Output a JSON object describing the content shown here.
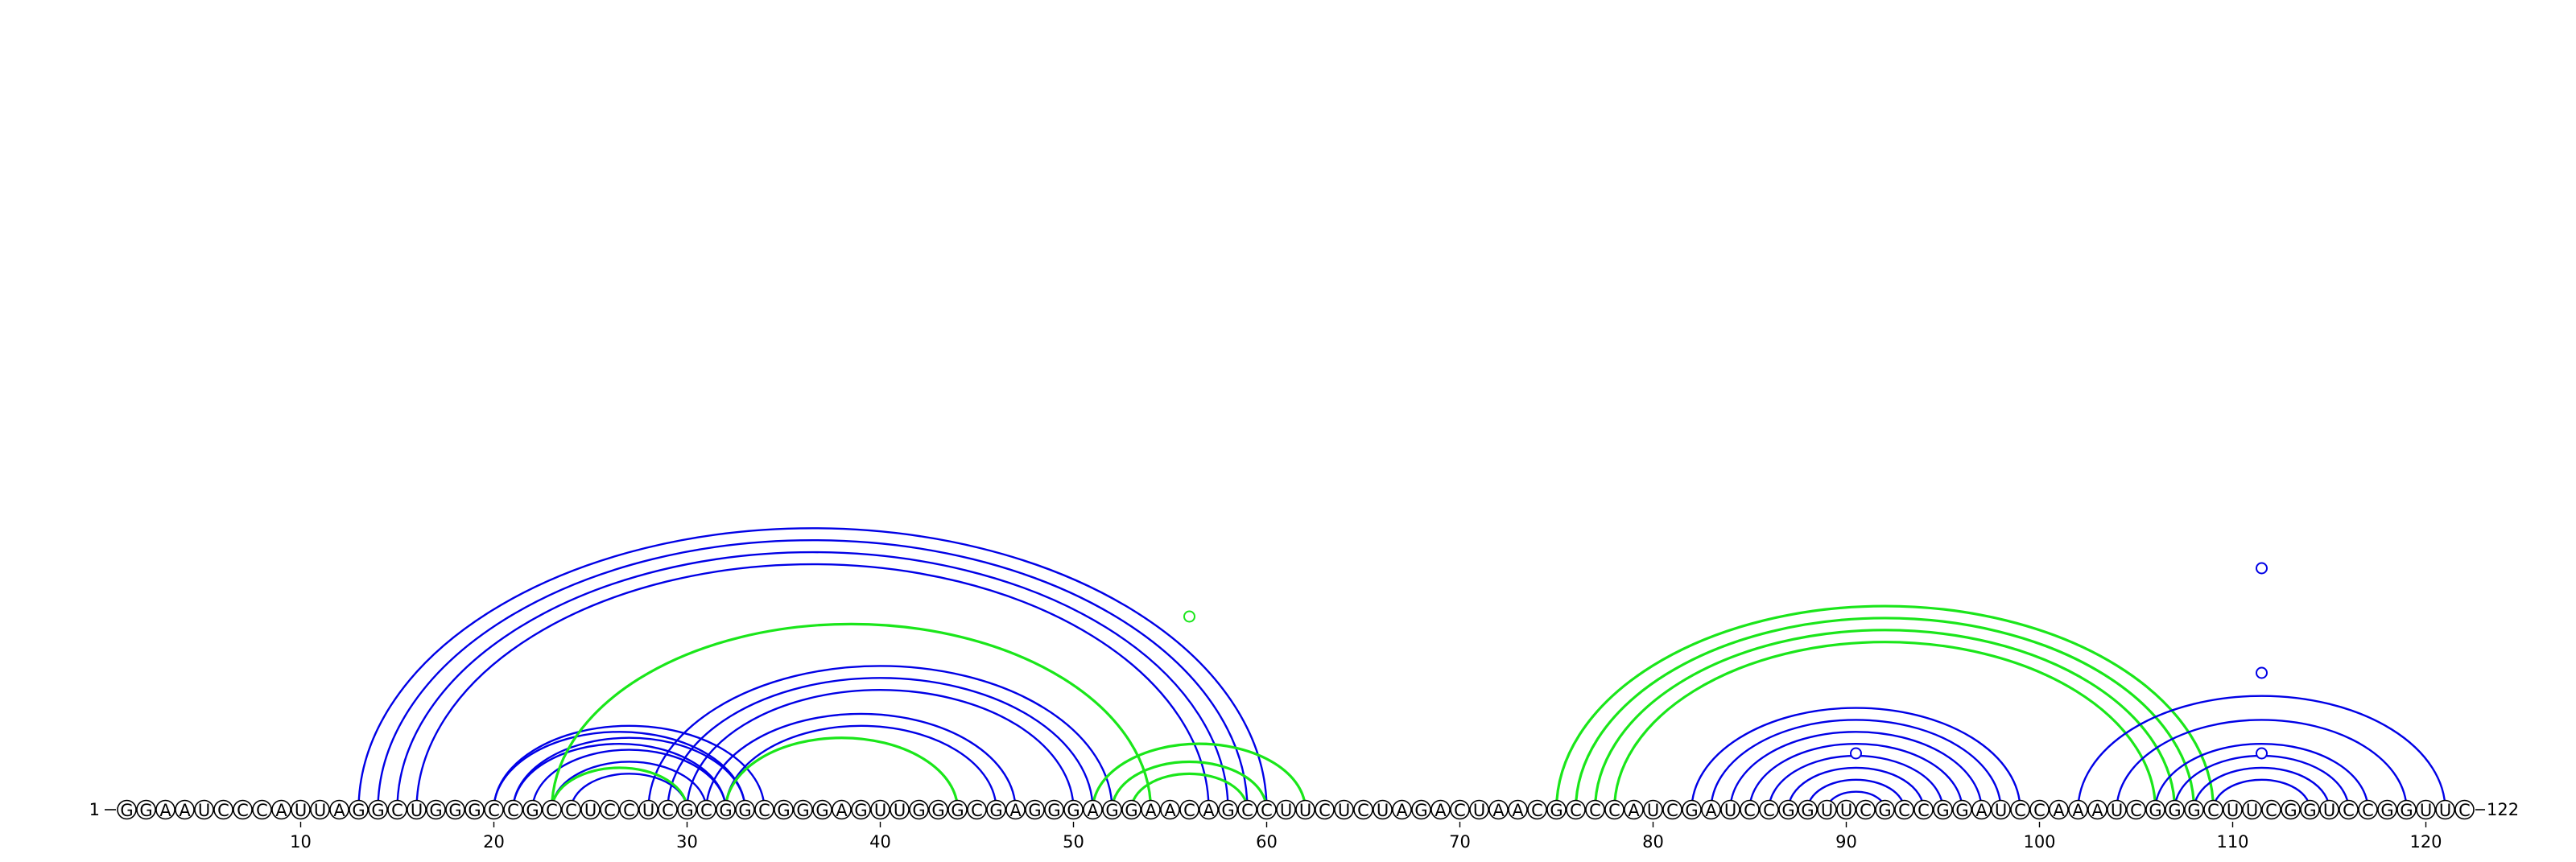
{
  "sequence": "GGAAUCCCAUUAGGCUGGGCCGCCUCCUCGCGGCGGGAGUUGGGCGAGGGAGGAACAGCCUUCUCUAGACUAACGCCCAUCGAUCCGGUUCGCCGGAUCCAAAUCGGGCUUCGGUCCGGUUC",
  "start_label": "1",
  "end_label": "122",
  "ticks": [
    10,
    20,
    30,
    40,
    50,
    60,
    70,
    80,
    90,
    100,
    110,
    120
  ],
  "colors": {
    "blue": "#0000e6",
    "green": "#1ae61a",
    "outline": "#000000"
  },
  "arcs": [
    {
      "i": 13,
      "j": 60,
      "c": "blue"
    },
    {
      "i": 14,
      "j": 59,
      "c": "blue"
    },
    {
      "i": 15,
      "j": 58,
      "c": "blue"
    },
    {
      "i": 16,
      "j": 57,
      "c": "blue"
    },
    {
      "i": 20,
      "j": 34,
      "c": "blue"
    },
    {
      "i": 21,
      "j": 33,
      "c": "blue"
    },
    {
      "i": 22,
      "j": 32,
      "c": "blue"
    },
    {
      "i": 23,
      "j": 31,
      "c": "blue"
    },
    {
      "i": 24,
      "j": 30,
      "c": "blue"
    },
    {
      "i": 20,
      "j": 33,
      "c": "blue"
    },
    {
      "i": 21,
      "j": 32,
      "c": "blue"
    },
    {
      "i": 28,
      "j": 52,
      "c": "blue"
    },
    {
      "i": 29,
      "j": 51,
      "c": "blue"
    },
    {
      "i": 30,
      "j": 50,
      "c": "blue"
    },
    {
      "i": 31,
      "j": 47,
      "c": "blue"
    },
    {
      "i": 32,
      "j": 46,
      "c": "blue"
    },
    {
      "i": 23,
      "j": 54,
      "c": "green"
    },
    {
      "i": 32,
      "j": 44,
      "c": "green"
    },
    {
      "i": 23,
      "j": 30,
      "c": "green"
    },
    {
      "i": 51,
      "j": 62,
      "c": "green"
    },
    {
      "i": 52,
      "j": 60,
      "c": "green"
    },
    {
      "i": 53,
      "j": 59,
      "c": "green"
    },
    {
      "i": 75,
      "j": 109,
      "c": "green"
    },
    {
      "i": 76,
      "j": 108,
      "c": "green"
    },
    {
      "i": 77,
      "j": 107,
      "c": "green"
    },
    {
      "i": 78,
      "j": 106,
      "c": "green"
    },
    {
      "i": 82,
      "j": 99,
      "c": "blue"
    },
    {
      "i": 83,
      "j": 98,
      "c": "blue"
    },
    {
      "i": 84,
      "j": 97,
      "c": "blue"
    },
    {
      "i": 85,
      "j": 96,
      "c": "blue"
    },
    {
      "i": 86,
      "j": 95,
      "c": "blue"
    },
    {
      "i": 87,
      "j": 94,
      "c": "blue"
    },
    {
      "i": 88,
      "j": 93,
      "c": "blue"
    },
    {
      "i": 89,
      "j": 92,
      "c": "blue"
    },
    {
      "i": 102,
      "j": 121,
      "c": "blue"
    },
    {
      "i": 104,
      "j": 119,
      "c": "blue"
    },
    {
      "i": 106,
      "j": 117,
      "c": "blue"
    },
    {
      "i": 107,
      "j": 116,
      "c": "blue"
    },
    {
      "i": 108,
      "j": 115,
      "c": "blue"
    },
    {
      "i": 109,
      "j": 114,
      "c": "blue"
    }
  ],
  "markers": [
    {
      "x": 56,
      "y": 12,
      "c": "green"
    },
    {
      "x": 90.5,
      "y": 3.5,
      "c": "blue"
    },
    {
      "x": 111.5,
      "y": 15,
      "c": "blue"
    },
    {
      "x": 111.5,
      "y": 8.5,
      "c": "blue"
    },
    {
      "x": 111.5,
      "y": 3.5,
      "c": "blue"
    }
  ]
}
